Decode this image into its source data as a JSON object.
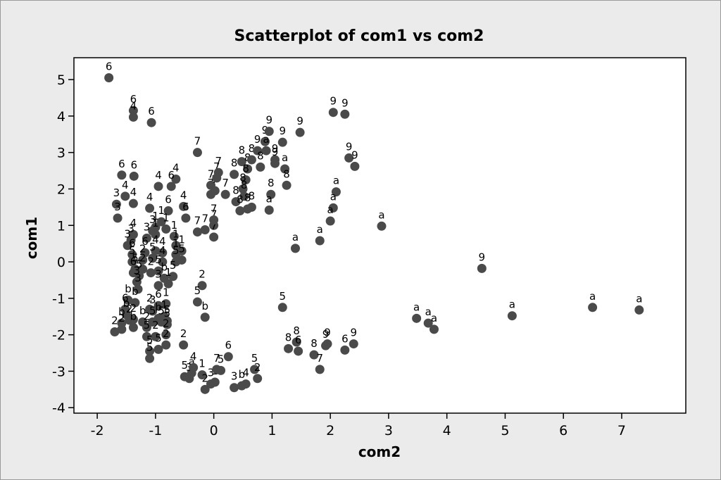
{
  "chart_data": {
    "type": "scatter",
    "title": "Scatterplot of com1 vs com2",
    "xlabel": "com2",
    "ylabel": "com1",
    "xlim": [
      -2.4,
      8.1
    ],
    "ylim": [
      -4.15,
      5.6
    ],
    "xticks": [
      -2,
      -1,
      0,
      1,
      2,
      3,
      4,
      5,
      6,
      7
    ],
    "yticks": [
      5,
      4,
      3,
      2,
      1,
      0,
      -1,
      -2,
      -3,
      -4
    ],
    "grid": false,
    "legend": "none",
    "point_color": "#4a4a4a",
    "points": [
      {
        "x": -1.8,
        "y": 5.05,
        "label": "6"
      },
      {
        "x": -1.38,
        "y": 4.15,
        "label": "6"
      },
      {
        "x": -1.38,
        "y": 3.97,
        "label": "4"
      },
      {
        "x": -1.07,
        "y": 3.82,
        "label": "6"
      },
      {
        "x": -1.58,
        "y": 2.38,
        "label": "6"
      },
      {
        "x": -1.37,
        "y": 2.35,
        "label": "6"
      },
      {
        "x": -0.95,
        "y": 2.07,
        "label": "4"
      },
      {
        "x": -0.65,
        "y": 2.27,
        "label": "4"
      },
      {
        "x": -0.73,
        "y": 2.07,
        "label": "6"
      },
      {
        "x": -1.52,
        "y": 1.8,
        "label": "4"
      },
      {
        "x": -1.67,
        "y": 1.58,
        "label": "3"
      },
      {
        "x": -1.38,
        "y": 1.6,
        "label": "4"
      },
      {
        "x": -1.65,
        "y": 1.2,
        "label": "3"
      },
      {
        "x": -1.1,
        "y": 1.47,
        "label": "4"
      },
      {
        "x": -0.78,
        "y": 1.4,
        "label": "6"
      },
      {
        "x": -0.52,
        "y": 1.52,
        "label": "4"
      },
      {
        "x": -0.48,
        "y": 1.2,
        "label": "6"
      },
      {
        "x": -0.9,
        "y": 1.1,
        "label": "1"
      },
      {
        "x": -1.0,
        "y": 0.95,
        "label": "1"
      },
      {
        "x": -1.05,
        "y": 0.85,
        "label": "3"
      },
      {
        "x": -0.82,
        "y": 0.9,
        "label": "1"
      },
      {
        "x": -1.38,
        "y": 0.75,
        "label": "4"
      },
      {
        "x": -1.42,
        "y": 0.6,
        "label": "3"
      },
      {
        "x": -1.48,
        "y": 0.45,
        "label": "3"
      },
      {
        "x": -1.4,
        "y": 0.2,
        "label": "6"
      },
      {
        "x": -1.15,
        "y": 0.65,
        "label": "3"
      },
      {
        "x": -1.0,
        "y": 0.75,
        "label": "1"
      },
      {
        "x": -0.68,
        "y": 0.7,
        "label": "1"
      },
      {
        "x": -0.65,
        "y": 0.45,
        "label": "1"
      },
      {
        "x": -0.55,
        "y": 0.3,
        "label": "1"
      },
      {
        "x": -0.65,
        "y": 0.2,
        "label": "1"
      },
      {
        "x": -1.0,
        "y": 0.3,
        "label": "4"
      },
      {
        "x": -1.18,
        "y": 0.25,
        "label": "6"
      },
      {
        "x": -1.22,
        "y": 0.05,
        "label": "2"
      },
      {
        "x": -0.88,
        "y": 0.25,
        "label": "4"
      },
      {
        "x": -1.05,
        "y": 0.1,
        "label": "5"
      },
      {
        "x": -0.88,
        "y": 0.0,
        "label": "4"
      },
      {
        "x": -0.55,
        "y": 0.05,
        "label": "5"
      },
      {
        "x": -0.65,
        "y": 0.0,
        "label": "5"
      },
      {
        "x": -1.4,
        "y": 0.0,
        "label": "5"
      },
      {
        "x": -1.35,
        "y": -0.2,
        "label": "5"
      },
      {
        "x": -1.22,
        "y": -0.2,
        "label": "2"
      },
      {
        "x": -1.38,
        "y": -0.3,
        "label": "6"
      },
      {
        "x": -1.28,
        "y": -0.38,
        "label": "5"
      },
      {
        "x": -1.08,
        "y": -0.3,
        "label": "2"
      },
      {
        "x": -0.95,
        "y": -0.25,
        "label": "5"
      },
      {
        "x": -1.32,
        "y": -0.55,
        "label": "3"
      },
      {
        "x": -0.85,
        "y": -0.45,
        "label": "b"
      },
      {
        "x": -0.7,
        "y": -0.4,
        "label": "5"
      },
      {
        "x": -0.95,
        "y": -0.65,
        "label": "3"
      },
      {
        "x": -0.78,
        "y": -0.6,
        "label": "1"
      },
      {
        "x": -1.3,
        "y": -0.75,
        "label": "3"
      },
      {
        "x": -1.47,
        "y": -1.05,
        "label": "b"
      },
      {
        "x": -1.52,
        "y": -1.3,
        "label": "6"
      },
      {
        "x": -1.5,
        "y": -1.45,
        "label": "b"
      },
      {
        "x": -1.35,
        "y": -1.12,
        "label": "b"
      },
      {
        "x": -1.45,
        "y": -1.6,
        "label": "2"
      },
      {
        "x": -1.58,
        "y": -1.68,
        "label": "b"
      },
      {
        "x": -1.38,
        "y": -1.58,
        "label": "2"
      },
      {
        "x": -1.7,
        "y": -1.92,
        "label": "2"
      },
      {
        "x": -1.58,
        "y": -1.85,
        "label": "2"
      },
      {
        "x": -1.38,
        "y": -1.8,
        "label": "b"
      },
      {
        "x": -1.22,
        "y": -1.65,
        "label": "b"
      },
      {
        "x": -1.1,
        "y": -1.3,
        "label": "2"
      },
      {
        "x": -1.05,
        "y": -1.35,
        "label": "3"
      },
      {
        "x": -0.95,
        "y": -1.2,
        "label": "6"
      },
      {
        "x": -0.82,
        "y": -1.15,
        "label": "1"
      },
      {
        "x": -0.95,
        "y": -1.55,
        "label": "b"
      },
      {
        "x": -0.85,
        "y": -1.5,
        "label": "1"
      },
      {
        "x": -0.8,
        "y": -1.62,
        "label": "5"
      },
      {
        "x": -1.05,
        "y": -1.65,
        "label": "5"
      },
      {
        "x": -0.9,
        "y": -1.65,
        "label": "5"
      },
      {
        "x": -0.8,
        "y": -1.72,
        "label": "5"
      },
      {
        "x": -1.15,
        "y": -1.8,
        "label": "2"
      },
      {
        "x": -1.15,
        "y": -2.05,
        "label": "5"
      },
      {
        "x": -1.0,
        "y": -2.05,
        "label": "2"
      },
      {
        "x": -0.82,
        "y": -2.0,
        "label": "2"
      },
      {
        "x": -0.95,
        "y": -2.4,
        "label": "5"
      },
      {
        "x": -0.82,
        "y": -2.28,
        "label": "2"
      },
      {
        "x": -1.1,
        "y": -2.45,
        "label": "5"
      },
      {
        "x": -1.1,
        "y": -2.65,
        "label": "5"
      },
      {
        "x": -0.28,
        "y": 3.0,
        "label": "7"
      },
      {
        "x": -0.05,
        "y": 1.85,
        "label": "7"
      },
      {
        "x": -0.05,
        "y": 2.1,
        "label": "7"
      },
      {
        "x": 0.02,
        "y": 1.95,
        "label": "7"
      },
      {
        "x": 0.05,
        "y": 2.3,
        "label": "7"
      },
      {
        "x": 0.08,
        "y": 2.45,
        "label": "7"
      },
      {
        "x": 0.2,
        "y": 1.85,
        "label": "7"
      },
      {
        "x": -0.28,
        "y": 0.82,
        "label": "7"
      },
      {
        "x": -0.15,
        "y": 0.88,
        "label": "7"
      },
      {
        "x": 0.0,
        "y": 1.0,
        "label": "7"
      },
      {
        "x": 0.0,
        "y": 0.68,
        "label": "7"
      },
      {
        "x": 0.0,
        "y": 1.15,
        "label": "7"
      },
      {
        "x": 0.35,
        "y": 2.4,
        "label": "8"
      },
      {
        "x": 0.48,
        "y": 2.75,
        "label": "8"
      },
      {
        "x": 0.58,
        "y": 2.55,
        "label": "8"
      },
      {
        "x": 0.55,
        "y": 2.25,
        "label": "8"
      },
      {
        "x": 0.5,
        "y": 2.0,
        "label": "8"
      },
      {
        "x": 0.52,
        "y": 1.8,
        "label": "8"
      },
      {
        "x": 0.38,
        "y": 1.65,
        "label": "8"
      },
      {
        "x": 0.45,
        "y": 1.4,
        "label": "8"
      },
      {
        "x": 0.58,
        "y": 1.45,
        "label": "8"
      },
      {
        "x": 0.65,
        "y": 1.5,
        "label": "8"
      },
      {
        "x": 0.65,
        "y": 2.8,
        "label": "8"
      },
      {
        "x": 0.75,
        "y": 3.05,
        "label": "9"
      },
      {
        "x": 0.8,
        "y": 2.6,
        "label": "8"
      },
      {
        "x": 0.88,
        "y": 3.3,
        "label": "9"
      },
      {
        "x": 0.95,
        "y": 3.58,
        "label": "9"
      },
      {
        "x": 0.9,
        "y": 3.05,
        "label": "a"
      },
      {
        "x": 1.05,
        "y": 2.8,
        "label": "9"
      },
      {
        "x": 1.05,
        "y": 2.7,
        "label": "9"
      },
      {
        "x": 1.18,
        "y": 3.28,
        "label": "9"
      },
      {
        "x": 1.22,
        "y": 2.55,
        "label": "a"
      },
      {
        "x": 0.98,
        "y": 1.85,
        "label": "8"
      },
      {
        "x": 1.25,
        "y": 2.1,
        "label": "8"
      },
      {
        "x": 0.95,
        "y": 1.42,
        "label": "a"
      },
      {
        "x": 1.48,
        "y": 3.55,
        "label": "9"
      },
      {
        "x": 2.05,
        "y": 4.1,
        "label": "9"
      },
      {
        "x": 2.25,
        "y": 4.05,
        "label": "9"
      },
      {
        "x": 2.32,
        "y": 2.85,
        "label": "9"
      },
      {
        "x": 2.42,
        "y": 2.62,
        "label": "9"
      },
      {
        "x": 2.1,
        "y": 1.92,
        "label": "a"
      },
      {
        "x": 2.05,
        "y": 1.48,
        "label": "a"
      },
      {
        "x": 2.0,
        "y": 1.12,
        "label": "a"
      },
      {
        "x": 1.82,
        "y": 0.58,
        "label": "a"
      },
      {
        "x": 1.4,
        "y": 0.37,
        "label": "a"
      },
      {
        "x": 2.88,
        "y": 0.98,
        "label": "a"
      },
      {
        "x": 1.18,
        "y": -1.25,
        "label": "5"
      },
      {
        "x": -0.2,
        "y": -0.65,
        "label": "2"
      },
      {
        "x": -0.28,
        "y": -1.1,
        "label": "5"
      },
      {
        "x": -0.15,
        "y": -1.52,
        "label": "b"
      },
      {
        "x": -0.52,
        "y": -2.28,
        "label": "2"
      },
      {
        "x": -0.5,
        "y": -3.15,
        "label": "5"
      },
      {
        "x": -0.38,
        "y": -3.05,
        "label": "a"
      },
      {
        "x": -0.42,
        "y": -3.2,
        "label": "3"
      },
      {
        "x": -0.35,
        "y": -2.9,
        "label": "4"
      },
      {
        "x": -0.2,
        "y": -3.1,
        "label": "1"
      },
      {
        "x": -0.15,
        "y": -3.5,
        "label": "2"
      },
      {
        "x": -0.05,
        "y": -3.35,
        "label": "3"
      },
      {
        "x": 0.02,
        "y": -3.3,
        "label": "1"
      },
      {
        "x": 0.05,
        "y": -2.95,
        "label": "7"
      },
      {
        "x": 0.12,
        "y": -2.98,
        "label": "5"
      },
      {
        "x": 0.25,
        "y": -2.6,
        "label": "6"
      },
      {
        "x": 0.35,
        "y": -3.45,
        "label": "3"
      },
      {
        "x": 0.48,
        "y": -3.4,
        "label": "b"
      },
      {
        "x": 0.55,
        "y": -3.35,
        "label": "4"
      },
      {
        "x": 0.7,
        "y": -2.95,
        "label": "5"
      },
      {
        "x": 0.75,
        "y": -3.2,
        "label": "2"
      },
      {
        "x": 1.28,
        "y": -2.38,
        "label": "8"
      },
      {
        "x": 1.42,
        "y": -2.2,
        "label": "8"
      },
      {
        "x": 1.45,
        "y": -2.45,
        "label": "6"
      },
      {
        "x": 1.72,
        "y": -2.55,
        "label": "8"
      },
      {
        "x": 1.82,
        "y": -2.95,
        "label": "7"
      },
      {
        "x": 1.92,
        "y": -2.3,
        "label": "9"
      },
      {
        "x": 1.95,
        "y": -2.25,
        "label": "9"
      },
      {
        "x": 2.25,
        "y": -2.42,
        "label": "6"
      },
      {
        "x": 2.4,
        "y": -2.25,
        "label": "9"
      },
      {
        "x": 3.48,
        "y": -1.55,
        "label": "a"
      },
      {
        "x": 3.68,
        "y": -1.68,
        "label": "a"
      },
      {
        "x": 3.78,
        "y": -1.85,
        "label": "a"
      },
      {
        "x": 4.6,
        "y": -0.18,
        "label": "9"
      },
      {
        "x": 5.12,
        "y": -1.48,
        "label": "a"
      },
      {
        "x": 6.5,
        "y": -1.25,
        "label": "a"
      },
      {
        "x": 7.3,
        "y": -1.32,
        "label": "a"
      }
    ]
  }
}
